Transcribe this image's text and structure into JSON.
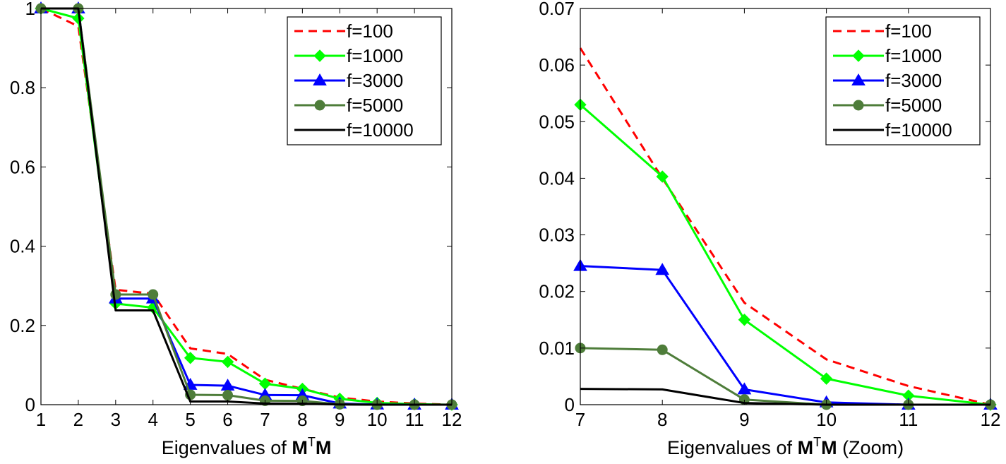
{
  "chart_data": [
    {
      "type": "line",
      "xlabel": {
        "prefix": "Eigenvalues of ",
        "bold1": "M",
        "sup": "T",
        "bold2": "M",
        "suffix": ""
      },
      "xlim": [
        1,
        12
      ],
      "ylim": [
        0,
        1
      ],
      "xticks": [
        1,
        2,
        3,
        4,
        5,
        6,
        7,
        8,
        9,
        10,
        11,
        12
      ],
      "xtick_labels": [
        "1",
        "2",
        "3",
        "4",
        "5",
        "6",
        "7",
        "8",
        "9",
        "10",
        "11",
        "12"
      ],
      "yticks": [
        0,
        0.2,
        0.4,
        0.6,
        0.8,
        1
      ],
      "ytick_labels": [
        "0",
        "0.2",
        "0.4",
        "0.6",
        "0.8",
        "1"
      ],
      "legend_position": "top-right",
      "grid": false,
      "x": [
        1,
        2,
        3,
        4,
        5,
        6,
        7,
        8,
        9,
        10,
        11,
        12
      ],
      "series": [
        {
          "name": "f=100",
          "color": "#ff0000",
          "style": "dashed",
          "marker": "none",
          "values": [
            1.0,
            0.955,
            0.29,
            0.28,
            0.142,
            0.128,
            0.063,
            0.04,
            0.018,
            0.008,
            0.003,
            0.0
          ]
        },
        {
          "name": "f=1000",
          "color": "#00ff00",
          "style": "solid",
          "marker": "diamond",
          "values": [
            1.0,
            0.975,
            0.255,
            0.245,
            0.118,
            0.108,
            0.053,
            0.04,
            0.015,
            0.0045,
            0.0015,
            0.0
          ]
        },
        {
          "name": "f=3000",
          "color": "#0000ff",
          "style": "solid",
          "marker": "triangle",
          "values": [
            1.0,
            1.0,
            0.268,
            0.268,
            0.05,
            0.048,
            0.0245,
            0.0238,
            0.0028,
            0.0004,
            0.0,
            0.0
          ]
        },
        {
          "name": "f=5000",
          "color": "#4e7d3a",
          "style": "solid",
          "marker": "circle",
          "values": [
            1.0,
            1.0,
            0.278,
            0.278,
            0.025,
            0.024,
            0.01,
            0.0097,
            0.0009,
            0.0,
            0.0,
            0.0
          ]
        },
        {
          "name": "f=10000",
          "color": "#000000",
          "style": "step",
          "marker": "none",
          "values": [
            1.0,
            1.0,
            0.238,
            0.238,
            0.008,
            0.008,
            0.0028,
            0.0027,
            0.0003,
            0.0,
            0.0,
            0.0
          ]
        }
      ]
    },
    {
      "type": "line",
      "xlabel": {
        "prefix": "Eigenvalues of ",
        "bold1": "M",
        "sup": "T",
        "bold2": "M",
        "suffix": " (Zoom)"
      },
      "xlim": [
        7,
        12
      ],
      "ylim": [
        0,
        0.07
      ],
      "xticks": [
        7,
        8,
        9,
        10,
        11,
        12
      ],
      "xtick_labels": [
        "7",
        "8",
        "9",
        "10",
        "11",
        "12"
      ],
      "yticks": [
        0,
        0.01,
        0.02,
        0.03,
        0.04,
        0.05,
        0.06,
        0.07
      ],
      "ytick_labels": [
        "0",
        "0.01",
        "0.02",
        "0.03",
        "0.04",
        "0.05",
        "0.06",
        "0.07"
      ],
      "legend_position": "top-right",
      "grid": false,
      "x": [
        7,
        8,
        9,
        10,
        11,
        12
      ],
      "series": [
        {
          "name": "f=100",
          "color": "#ff0000",
          "style": "dashed",
          "marker": "none",
          "values": [
            0.063,
            0.04,
            0.018,
            0.008,
            0.0033,
            0.0
          ]
        },
        {
          "name": "f=1000",
          "color": "#00ff00",
          "style": "solid",
          "marker": "diamond",
          "values": [
            0.053,
            0.0403,
            0.015,
            0.0046,
            0.0016,
            0.0
          ]
        },
        {
          "name": "f=3000",
          "color": "#0000ff",
          "style": "solid",
          "marker": "triangle",
          "values": [
            0.0245,
            0.0238,
            0.0027,
            0.0004,
            0.0,
            0.0
          ]
        },
        {
          "name": "f=5000",
          "color": "#4e7d3a",
          "style": "solid",
          "marker": "circle",
          "values": [
            0.01,
            0.0097,
            0.0009,
            0.0,
            0.0,
            0.0
          ]
        },
        {
          "name": "f=10000",
          "color": "#000000",
          "style": "step",
          "marker": "none",
          "values": [
            0.0028,
            0.0027,
            0.0003,
            0.0,
            0.0,
            0.0
          ]
        }
      ]
    }
  ]
}
